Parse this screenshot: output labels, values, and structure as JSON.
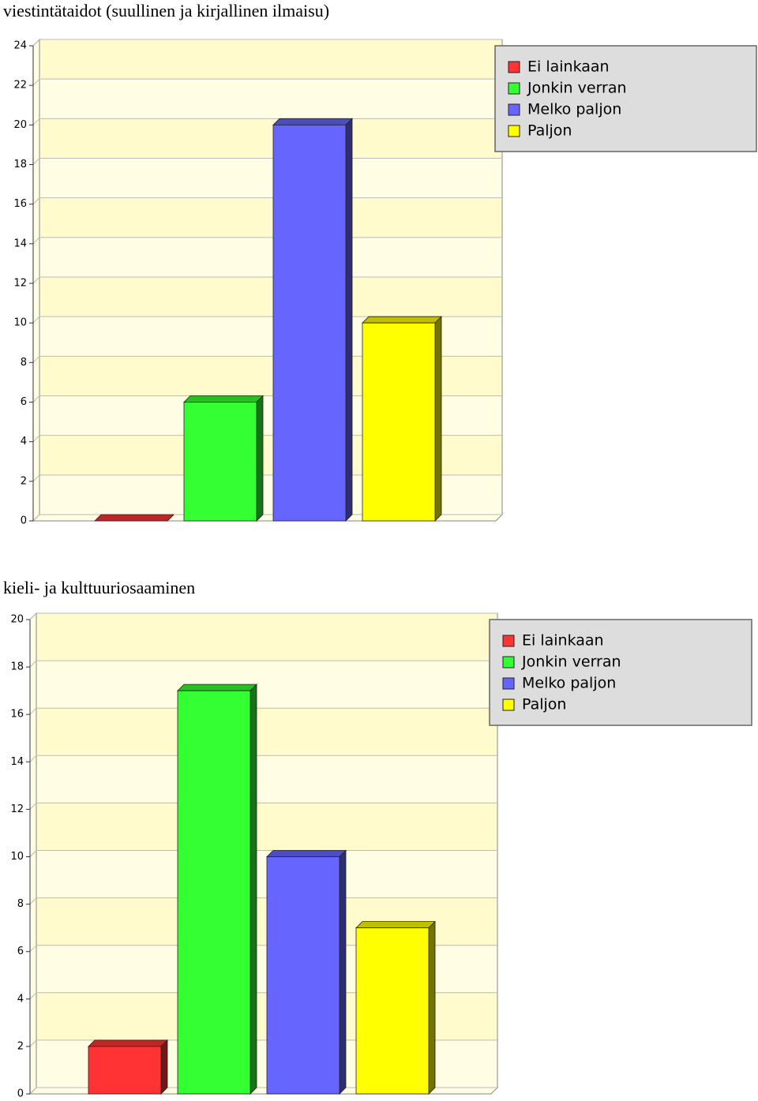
{
  "chart_data": [
    {
      "type": "bar",
      "title": "viestintätaidot (suullinen ja kirjallinen ilmaisu)",
      "series": [
        {
          "name": "Ei lainkaan",
          "color": "#ff3333",
          "values": [
            0
          ]
        },
        {
          "name": "Jonkin verran",
          "color": "#33ff33",
          "values": [
            6
          ]
        },
        {
          "name": "Melko paljon",
          "color": "#6666ff",
          "values": [
            20
          ]
        },
        {
          "name": "Paljon",
          "color": "#ffff00",
          "values": [
            10
          ]
        }
      ],
      "ylim": [
        0,
        24
      ],
      "yticks": [
        0,
        2,
        4,
        6,
        8,
        10,
        12,
        14,
        16,
        18,
        20,
        22,
        24
      ],
      "grid": true,
      "legend": "upper right"
    },
    {
      "type": "bar",
      "title": "kieli- ja kulttuuriosaaminen",
      "series": [
        {
          "name": "Ei lainkaan",
          "color": "#ff3333",
          "values": [
            2
          ]
        },
        {
          "name": "Jonkin verran",
          "color": "#33ff33",
          "values": [
            17
          ]
        },
        {
          "name": "Melko paljon",
          "color": "#6666ff",
          "values": [
            10
          ]
        },
        {
          "name": "Paljon",
          "color": "#ffff00",
          "values": [
            7
          ]
        }
      ],
      "ylim": [
        0,
        20
      ],
      "yticks": [
        0,
        2,
        4,
        6,
        8,
        10,
        12,
        14,
        16,
        18,
        20
      ],
      "grid": true,
      "legend": "upper right"
    }
  ]
}
